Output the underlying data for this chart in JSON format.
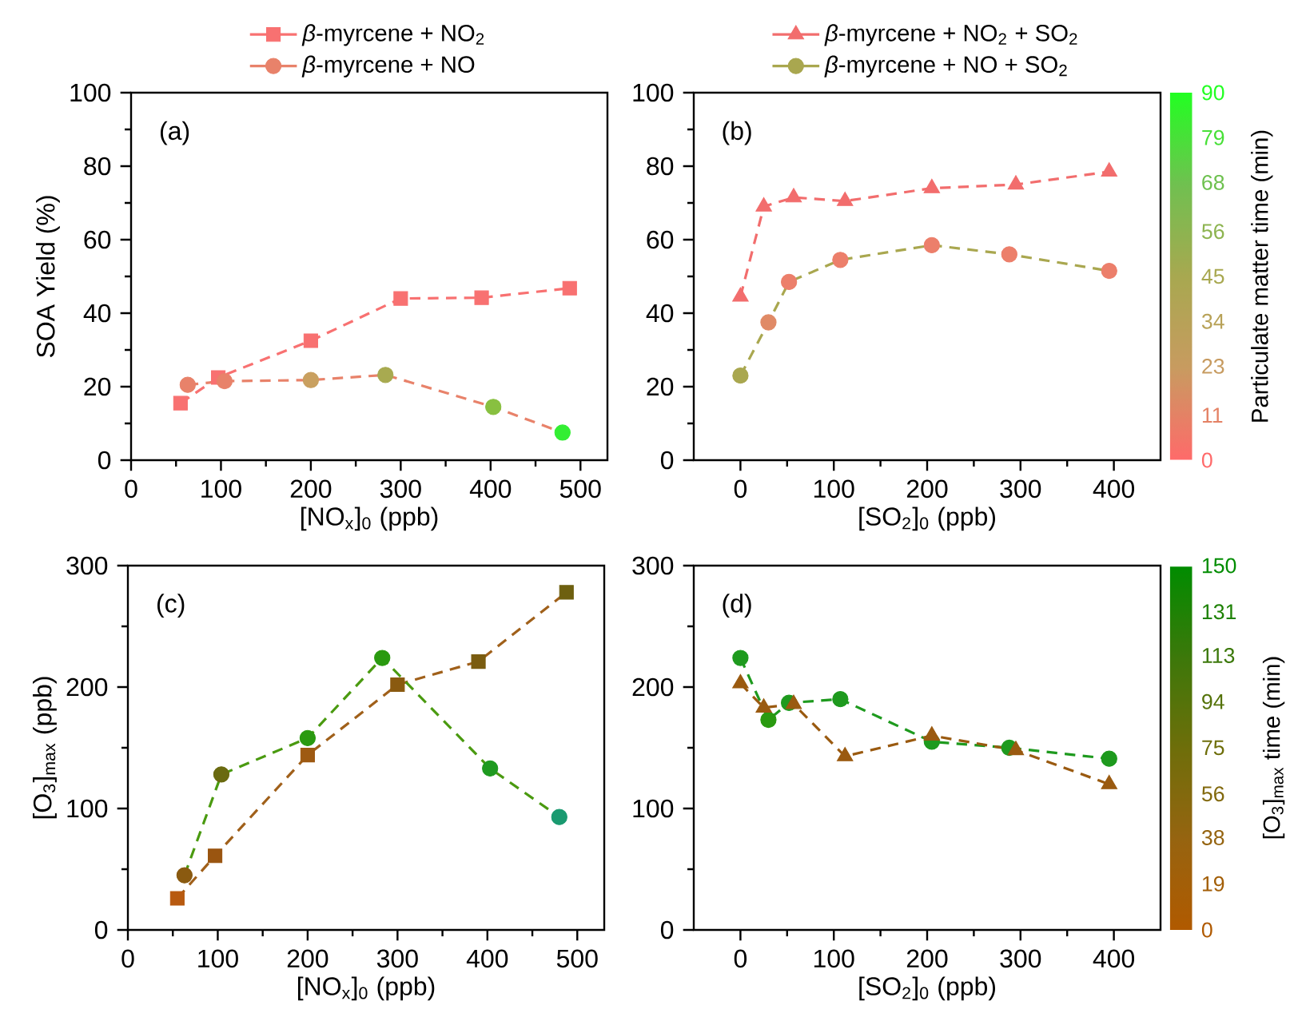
{
  "chart_data": [
    {
      "type": "line",
      "annotations": [
        "(a)"
      ],
      "xlabel": "[NO$_{x}$]$_{0}$ (ppb)",
      "ylabel": "SOA Yield (%)",
      "xlim": [
        0,
        530
      ],
      "xticks": [
        0,
        100,
        200,
        300,
        400,
        500
      ],
      "ylim": [
        0,
        100
      ],
      "yticks": [
        0,
        20,
        40,
        60,
        80,
        100
      ],
      "line_style": "dashed",
      "legend": "top",
      "series": [
        {
          "name": "*β*-myrcene + NO$_{2}$",
          "color": "#f87171",
          "marker": "square",
          "x": [
            55,
            97,
            200,
            300,
            390,
            488
          ],
          "values": [
            15.5,
            22.5,
            32.5,
            44,
            44.2,
            46.8
          ],
          "colors": [
            "#f87171",
            "#f87171",
            "#f87171",
            "#f87171",
            "#f87171",
            "#f87171"
          ]
        },
        {
          "name": "*β*-myrcene + NO",
          "color": "#e8826a",
          "marker": "circle",
          "x": [
            63,
            104,
            200,
            283,
            403,
            480
          ],
          "values": [
            20.5,
            21.5,
            21.8,
            23.2,
            14.5,
            7.5
          ],
          "colors": [
            "#e8826a",
            "#e8826a",
            "#c9a060",
            "#a8aa50",
            "#88c040",
            "#33ee33"
          ]
        }
      ]
    },
    {
      "type": "line",
      "annotations": [
        "(b)"
      ],
      "xlabel": "[SO$_{2}$]$_{0}$ (ppb)",
      "xlim": [
        -50,
        450
      ],
      "xticks": [
        0,
        100,
        200,
        300,
        400
      ],
      "ylim": [
        0,
        100
      ],
      "yticks": [
        0,
        20,
        40,
        60,
        80,
        100
      ],
      "line_style": "dashed",
      "legend": "top",
      "clabel": "Particulate matter time (min)",
      "clim": [
        0,
        90
      ],
      "cticks": [
        0,
        11,
        23,
        34,
        45,
        56,
        68,
        79,
        90
      ],
      "series": [
        {
          "name": "*β*-myrcene + NO$_{2}$ + SO$_{2}$",
          "color": "#f26d6d",
          "marker": "triangle",
          "x": [
            0,
            25,
            57,
            112,
            205,
            295,
            395
          ],
          "values": [
            44.5,
            69,
            71.5,
            70.5,
            74,
            75,
            78.5
          ],
          "colors": [
            "#f26d6d",
            "#f26d6d",
            "#f26d6d",
            "#f26d6d",
            "#f26d6d",
            "#f26d6d",
            "#f26d6d"
          ]
        },
        {
          "name": "*β*-myrcene + NO + SO$_{2}$",
          "color": "#a9a74f",
          "marker": "circle",
          "x": [
            0,
            30,
            52,
            107,
            205,
            288,
            395
          ],
          "values": [
            23,
            37.5,
            48.5,
            54.5,
            58.5,
            56,
            51.5
          ],
          "colors": [
            "#a9a74f",
            "#e08a66",
            "#ec7f6b",
            "#ec7f6b",
            "#ec7f6b",
            "#ec7f6b",
            "#ec7f6b"
          ]
        }
      ]
    },
    {
      "type": "line",
      "annotations": [
        "(c)"
      ],
      "xlabel": "[NO$_{x}$]$_{0}$ (ppb)",
      "ylabel": "[O$_{3}$]$_{max}$ (ppb)",
      "xlim": [
        0,
        530
      ],
      "xticks": [
        0,
        100,
        200,
        300,
        400,
        500
      ],
      "ylim": [
        0,
        300
      ],
      "yticks": [
        0,
        100,
        200,
        300
      ],
      "line_style": "dashed",
      "series": [
        {
          "color": "#a0601a",
          "marker": "square",
          "x": [
            55,
            97,
            200,
            300,
            390,
            488
          ],
          "values": [
            26,
            61,
            144,
            202,
            221,
            278
          ],
          "colors": [
            "#b85a10",
            "#9a5510",
            "#9e5a12",
            "#8a5a10",
            "#7a5c10",
            "#6e6010"
          ]
        },
        {
          "color": "#4a9a10",
          "marker": "circle",
          "x": [
            63,
            104,
            200,
            283,
            403,
            480
          ],
          "values": [
            45,
            128,
            158,
            224,
            133,
            93
          ],
          "colors": [
            "#8a5a10",
            "#6a6a10",
            "#2a9a10",
            "#2a9a10",
            "#1f9a20",
            "#1a9a70"
          ]
        }
      ]
    },
    {
      "type": "line",
      "annotations": [
        "(d)"
      ],
      "xlabel": "[SO$_{2}$]$_{0}$ (ppb)",
      "xlim": [
        -50,
        450
      ],
      "xticks": [
        0,
        100,
        200,
        300,
        400
      ],
      "ylim": [
        0,
        300
      ],
      "yticks": [
        0,
        100,
        200,
        300
      ],
      "line_style": "dashed",
      "clabel": "[O$_{3}$]$_{max}$ time (min)",
      "clim": [
        0,
        150
      ],
      "cticks": [
        0,
        19,
        38,
        56,
        75,
        94,
        113,
        131,
        150
      ],
      "series": [
        {
          "color": "#1e9a1e",
          "marker": "circle",
          "x": [
            0,
            30,
            52,
            107,
            205,
            288,
            395
          ],
          "values": [
            224,
            173,
            187,
            190,
            155,
            150,
            141
          ],
          "colors": [
            "#1e9a1e",
            "#2a9a10",
            "#1e9a1e",
            "#1e9a1e",
            "#1e9a1e",
            "#1e9a1e",
            "#1e9a1e"
          ]
        },
        {
          "color": "#9a5a10",
          "marker": "triangle",
          "x": [
            0,
            25,
            57,
            112,
            205,
            295,
            395
          ],
          "values": [
            203,
            183,
            186,
            143,
            160,
            148,
            120
          ],
          "colors": [
            "#9a5a10",
            "#9a5a10",
            "#9a5a10",
            "#9a5a10",
            "#9a5a10",
            "#9a5a10",
            "#9a5a10"
          ]
        }
      ]
    }
  ]
}
